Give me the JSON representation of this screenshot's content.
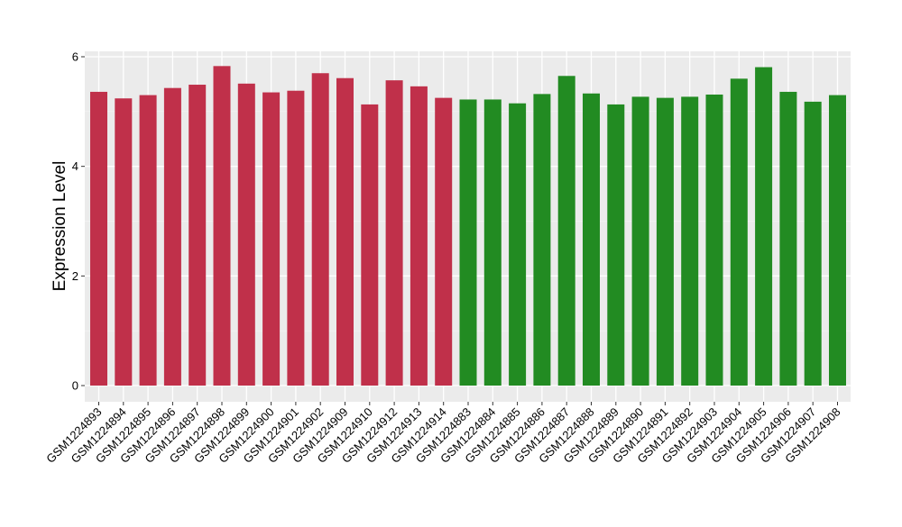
{
  "chart_data": {
    "type": "bar",
    "ylabel": "Expression Level",
    "ylim": [
      0,
      6.05
    ],
    "yticks": [
      0,
      2,
      4,
      6
    ],
    "grid": true,
    "categories": [
      "GSM1224893",
      "GSM1224894",
      "GSM1224895",
      "GSM1224896",
      "GSM1224897",
      "GSM1224898",
      "GSM1224899",
      "GSM1224900",
      "GSM1224901",
      "GSM1224902",
      "GSM1224909",
      "GSM1224910",
      "GSM1224912",
      "GSM1224913",
      "GSM1224914",
      "GSM1224883",
      "GSM1224884",
      "GSM1224885",
      "GSM1224886",
      "GSM1224887",
      "GSM1224888",
      "GSM1224889",
      "GSM1224890",
      "GSM1224891",
      "GSM1224892",
      "GSM1224903",
      "GSM1224904",
      "GSM1224905",
      "GSM1224906",
      "GSM1224907",
      "GSM1224908"
    ],
    "values": [
      5.36,
      5.24,
      5.3,
      5.43,
      5.49,
      5.83,
      5.51,
      5.35,
      5.38,
      5.7,
      5.61,
      5.13,
      5.57,
      5.46,
      5.25,
      5.22,
      5.22,
      5.15,
      5.32,
      5.65,
      5.33,
      5.13,
      5.27,
      5.25,
      5.27,
      5.31,
      5.6,
      5.81,
      5.36,
      5.18,
      5.3
    ],
    "colors": [
      "#c0304a",
      "#c0304a",
      "#c0304a",
      "#c0304a",
      "#c0304a",
      "#c0304a",
      "#c0304a",
      "#c0304a",
      "#c0304a",
      "#c0304a",
      "#c0304a",
      "#c0304a",
      "#c0304a",
      "#c0304a",
      "#c0304a",
      "#228b22",
      "#228b22",
      "#228b22",
      "#228b22",
      "#228b22",
      "#228b22",
      "#228b22",
      "#228b22",
      "#228b22",
      "#228b22",
      "#228b22",
      "#228b22",
      "#228b22",
      "#228b22",
      "#228b22",
      "#228b22"
    ]
  }
}
